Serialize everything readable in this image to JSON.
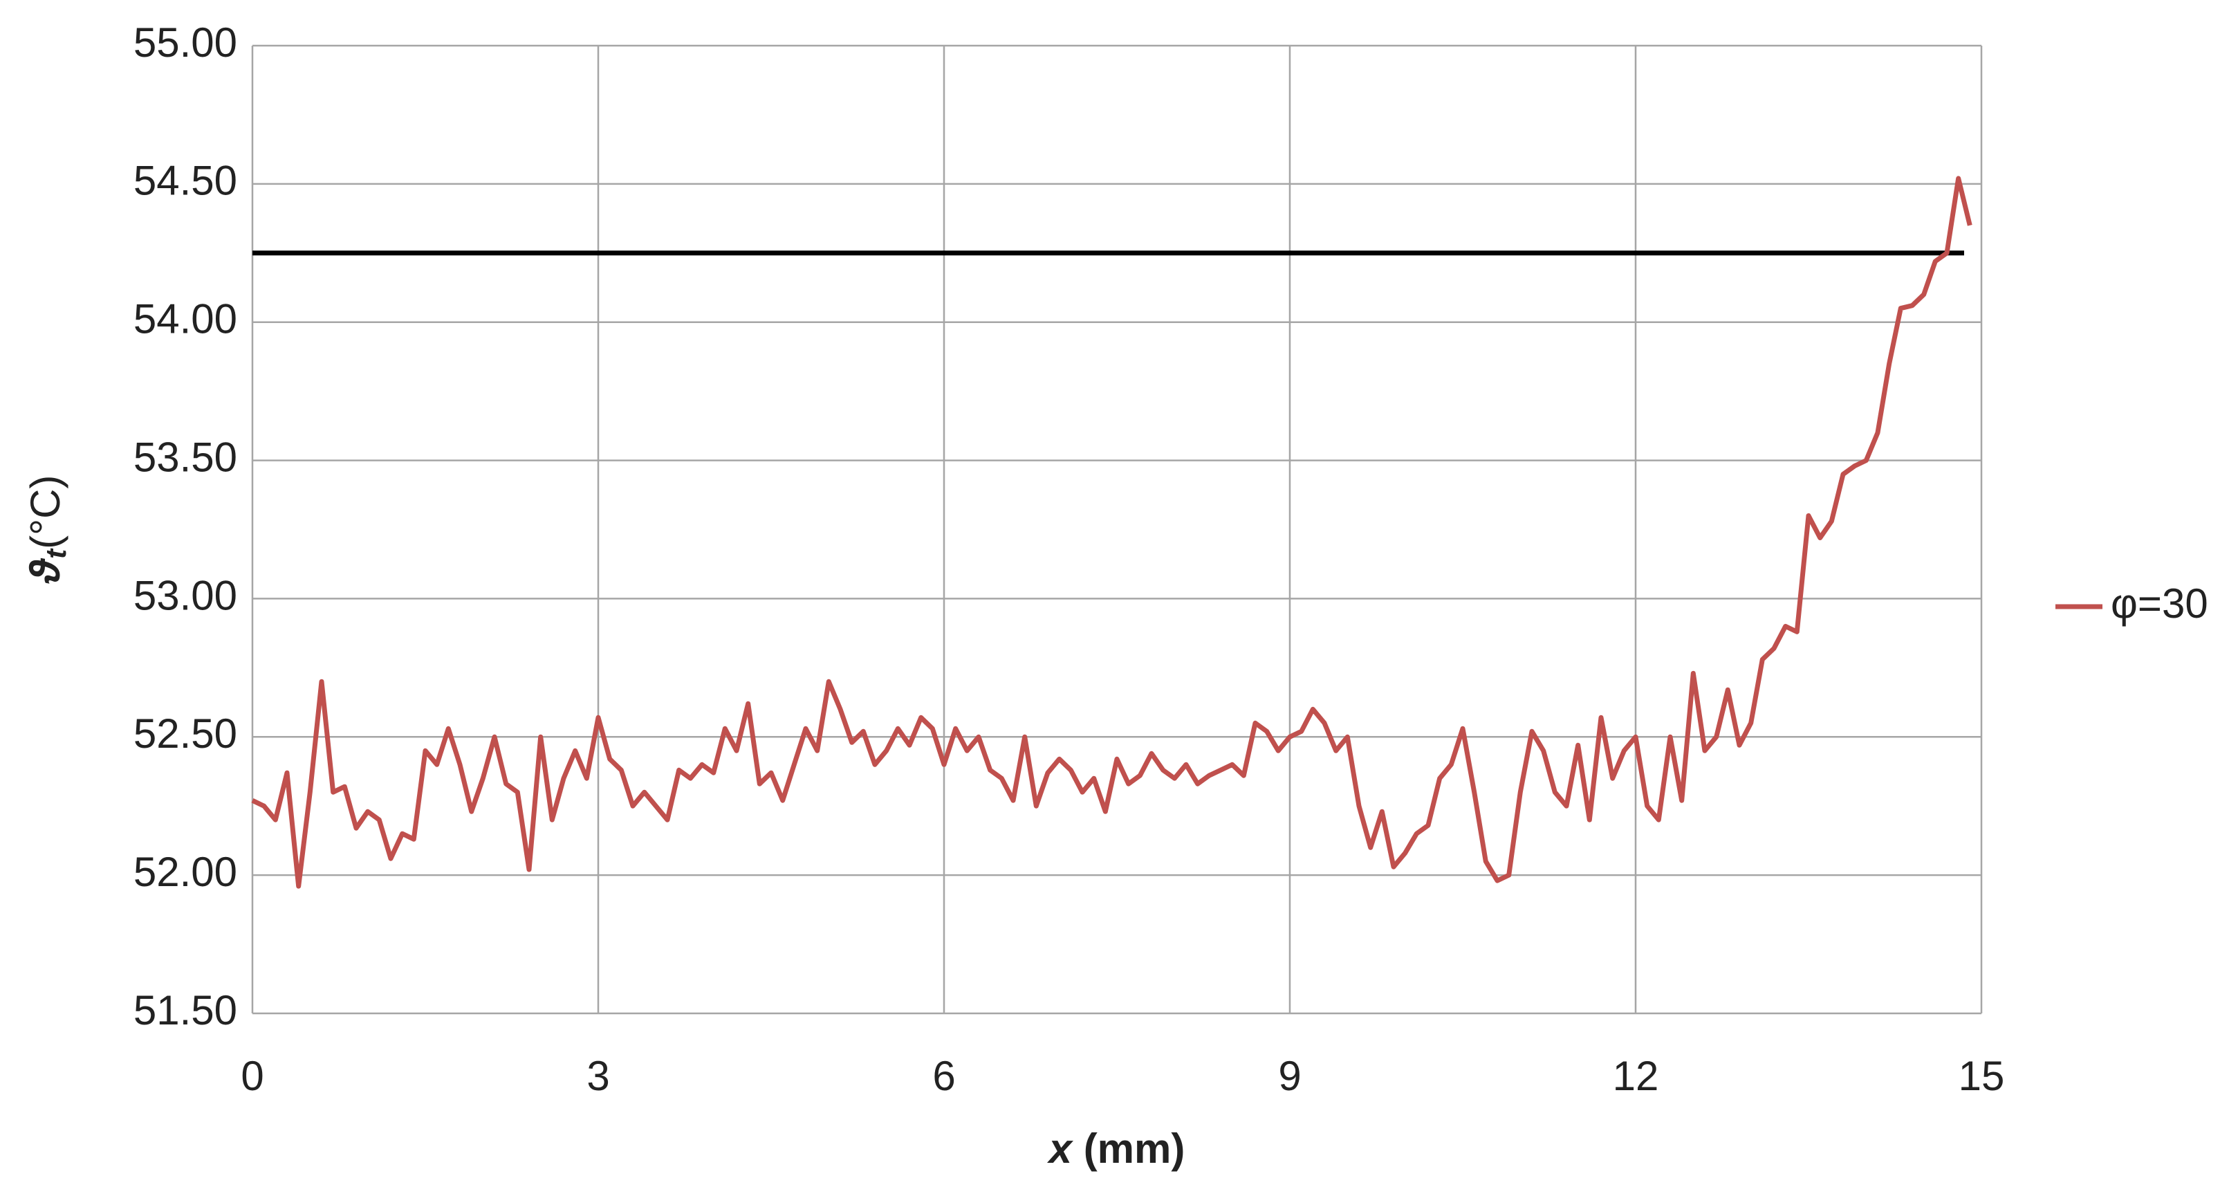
{
  "chart_data": {
    "type": "line",
    "x_label": {
      "symbol": "x",
      "unit": "(mm)"
    },
    "y_label": {
      "symbol": "ϑ",
      "subscript": "t",
      "unit": "(°C)"
    },
    "x": [
      0,
      0.1,
      0.2,
      0.3,
      0.4,
      0.5,
      0.6,
      0.7,
      0.8,
      0.9,
      1,
      1.1,
      1.2,
      1.3,
      1.4,
      1.5,
      1.6,
      1.7,
      1.8,
      1.9,
      2,
      2.1,
      2.2,
      2.3,
      2.4,
      2.5,
      2.6,
      2.7,
      2.8,
      2.9,
      3,
      3.1,
      3.2,
      3.3,
      3.4,
      3.5,
      3.6,
      3.7,
      3.8,
      3.9,
      4,
      4.1,
      4.2,
      4.3,
      4.4,
      4.5,
      4.6,
      4.7,
      4.8,
      4.9,
      5,
      5.1,
      5.2,
      5.3,
      5.4,
      5.5,
      5.6,
      5.7,
      5.8,
      5.9,
      6,
      6.1,
      6.2,
      6.3,
      6.4,
      6.5,
      6.6,
      6.7,
      6.8,
      6.9,
      7,
      7.1,
      7.2,
      7.3,
      7.4,
      7.5,
      7.6,
      7.7,
      7.8,
      7.9,
      8,
      8.1,
      8.2,
      8.3,
      8.4,
      8.5,
      8.6,
      8.7,
      8.8,
      8.9,
      9,
      9.1,
      9.2,
      9.3,
      9.4,
      9.5,
      9.6,
      9.7,
      9.8,
      9.9,
      10,
      10.1,
      10.2,
      10.3,
      10.4,
      10.5,
      10.6,
      10.7,
      10.8,
      10.9,
      11,
      11.1,
      11.2,
      11.3,
      11.4,
      11.5,
      11.6,
      11.7,
      11.8,
      11.9,
      12,
      12.1,
      12.2,
      12.3,
      12.4,
      12.5,
      12.6,
      12.7,
      12.8,
      12.9,
      13,
      13.1,
      13.2,
      13.3,
      13.4,
      13.5,
      13.6,
      13.7,
      13.8,
      13.9,
      14,
      14.1,
      14.2,
      14.3,
      14.4,
      14.5,
      14.6,
      14.7,
      14.8,
      14.9
    ],
    "series": [
      {
        "name": "φ=30",
        "color": "#c0504d",
        "values": [
          52.27,
          52.25,
          52.2,
          52.37,
          51.96,
          52.3,
          52.7,
          52.3,
          52.32,
          52.17,
          52.23,
          52.2,
          52.06,
          52.15,
          52.13,
          52.45,
          52.4,
          52.53,
          52.4,
          52.23,
          52.35,
          52.5,
          52.33,
          52.3,
          52.02,
          52.5,
          52.2,
          52.35,
          52.45,
          52.35,
          52.57,
          52.42,
          52.38,
          52.25,
          52.3,
          52.25,
          52.2,
          52.38,
          52.35,
          52.4,
          52.37,
          52.53,
          52.45,
          52.62,
          52.33,
          52.37,
          52.27,
          52.4,
          52.53,
          52.45,
          52.7,
          52.6,
          52.48,
          52.52,
          52.4,
          52.45,
          52.53,
          52.47,
          52.57,
          52.53,
          52.4,
          52.53,
          52.45,
          52.5,
          52.38,
          52.35,
          52.27,
          52.5,
          52.25,
          52.37,
          52.42,
          52.38,
          52.3,
          52.35,
          52.23,
          52.42,
          52.33,
          52.36,
          52.44,
          52.38,
          52.35,
          52.4,
          52.33,
          52.36,
          52.38,
          52.4,
          52.36,
          52.55,
          52.52,
          52.45,
          52.5,
          52.52,
          52.6,
          52.55,
          52.45,
          52.5,
          52.25,
          52.1,
          52.23,
          52.03,
          52.08,
          52.15,
          52.18,
          52.35,
          52.4,
          52.53,
          52.3,
          52.05,
          51.98,
          52,
          52.3,
          52.52,
          52.45,
          52.3,
          52.25,
          52.47,
          52.2,
          52.57,
          52.35,
          52.45,
          52.5,
          52.25,
          52.2,
          52.5,
          52.27,
          52.73,
          52.45,
          52.5,
          52.67,
          52.47,
          52.55,
          52.78,
          52.82,
          52.9,
          52.88,
          53.3,
          53.22,
          53.28,
          53.45,
          53.48,
          53.5,
          53.6,
          53.85,
          54.05,
          54.06,
          54.1,
          54.22,
          54.25,
          54.52,
          54.35
        ]
      }
    ],
    "reference_line": {
      "y": 54.25,
      "x": [
        0,
        14.85
      ],
      "color": "#000000"
    },
    "xlim": [
      0,
      15
    ],
    "xticks": [
      0,
      3,
      6,
      9,
      12,
      15
    ],
    "ylim": [
      51.5,
      55
    ],
    "yticks": [
      {
        "value": 51.5,
        "label": "51.50"
      },
      {
        "value": 52,
        "label": "52.00"
      },
      {
        "value": 52.5,
        "label": "52.50"
      },
      {
        "value": 53,
        "label": "53.00"
      },
      {
        "value": 53.5,
        "label": "53.50"
      },
      {
        "value": 54,
        "label": "54.00"
      },
      {
        "value": 54.5,
        "label": "54.50"
      },
      {
        "value": 55,
        "label": "55.00"
      }
    ],
    "grid": true,
    "legend": "right"
  }
}
